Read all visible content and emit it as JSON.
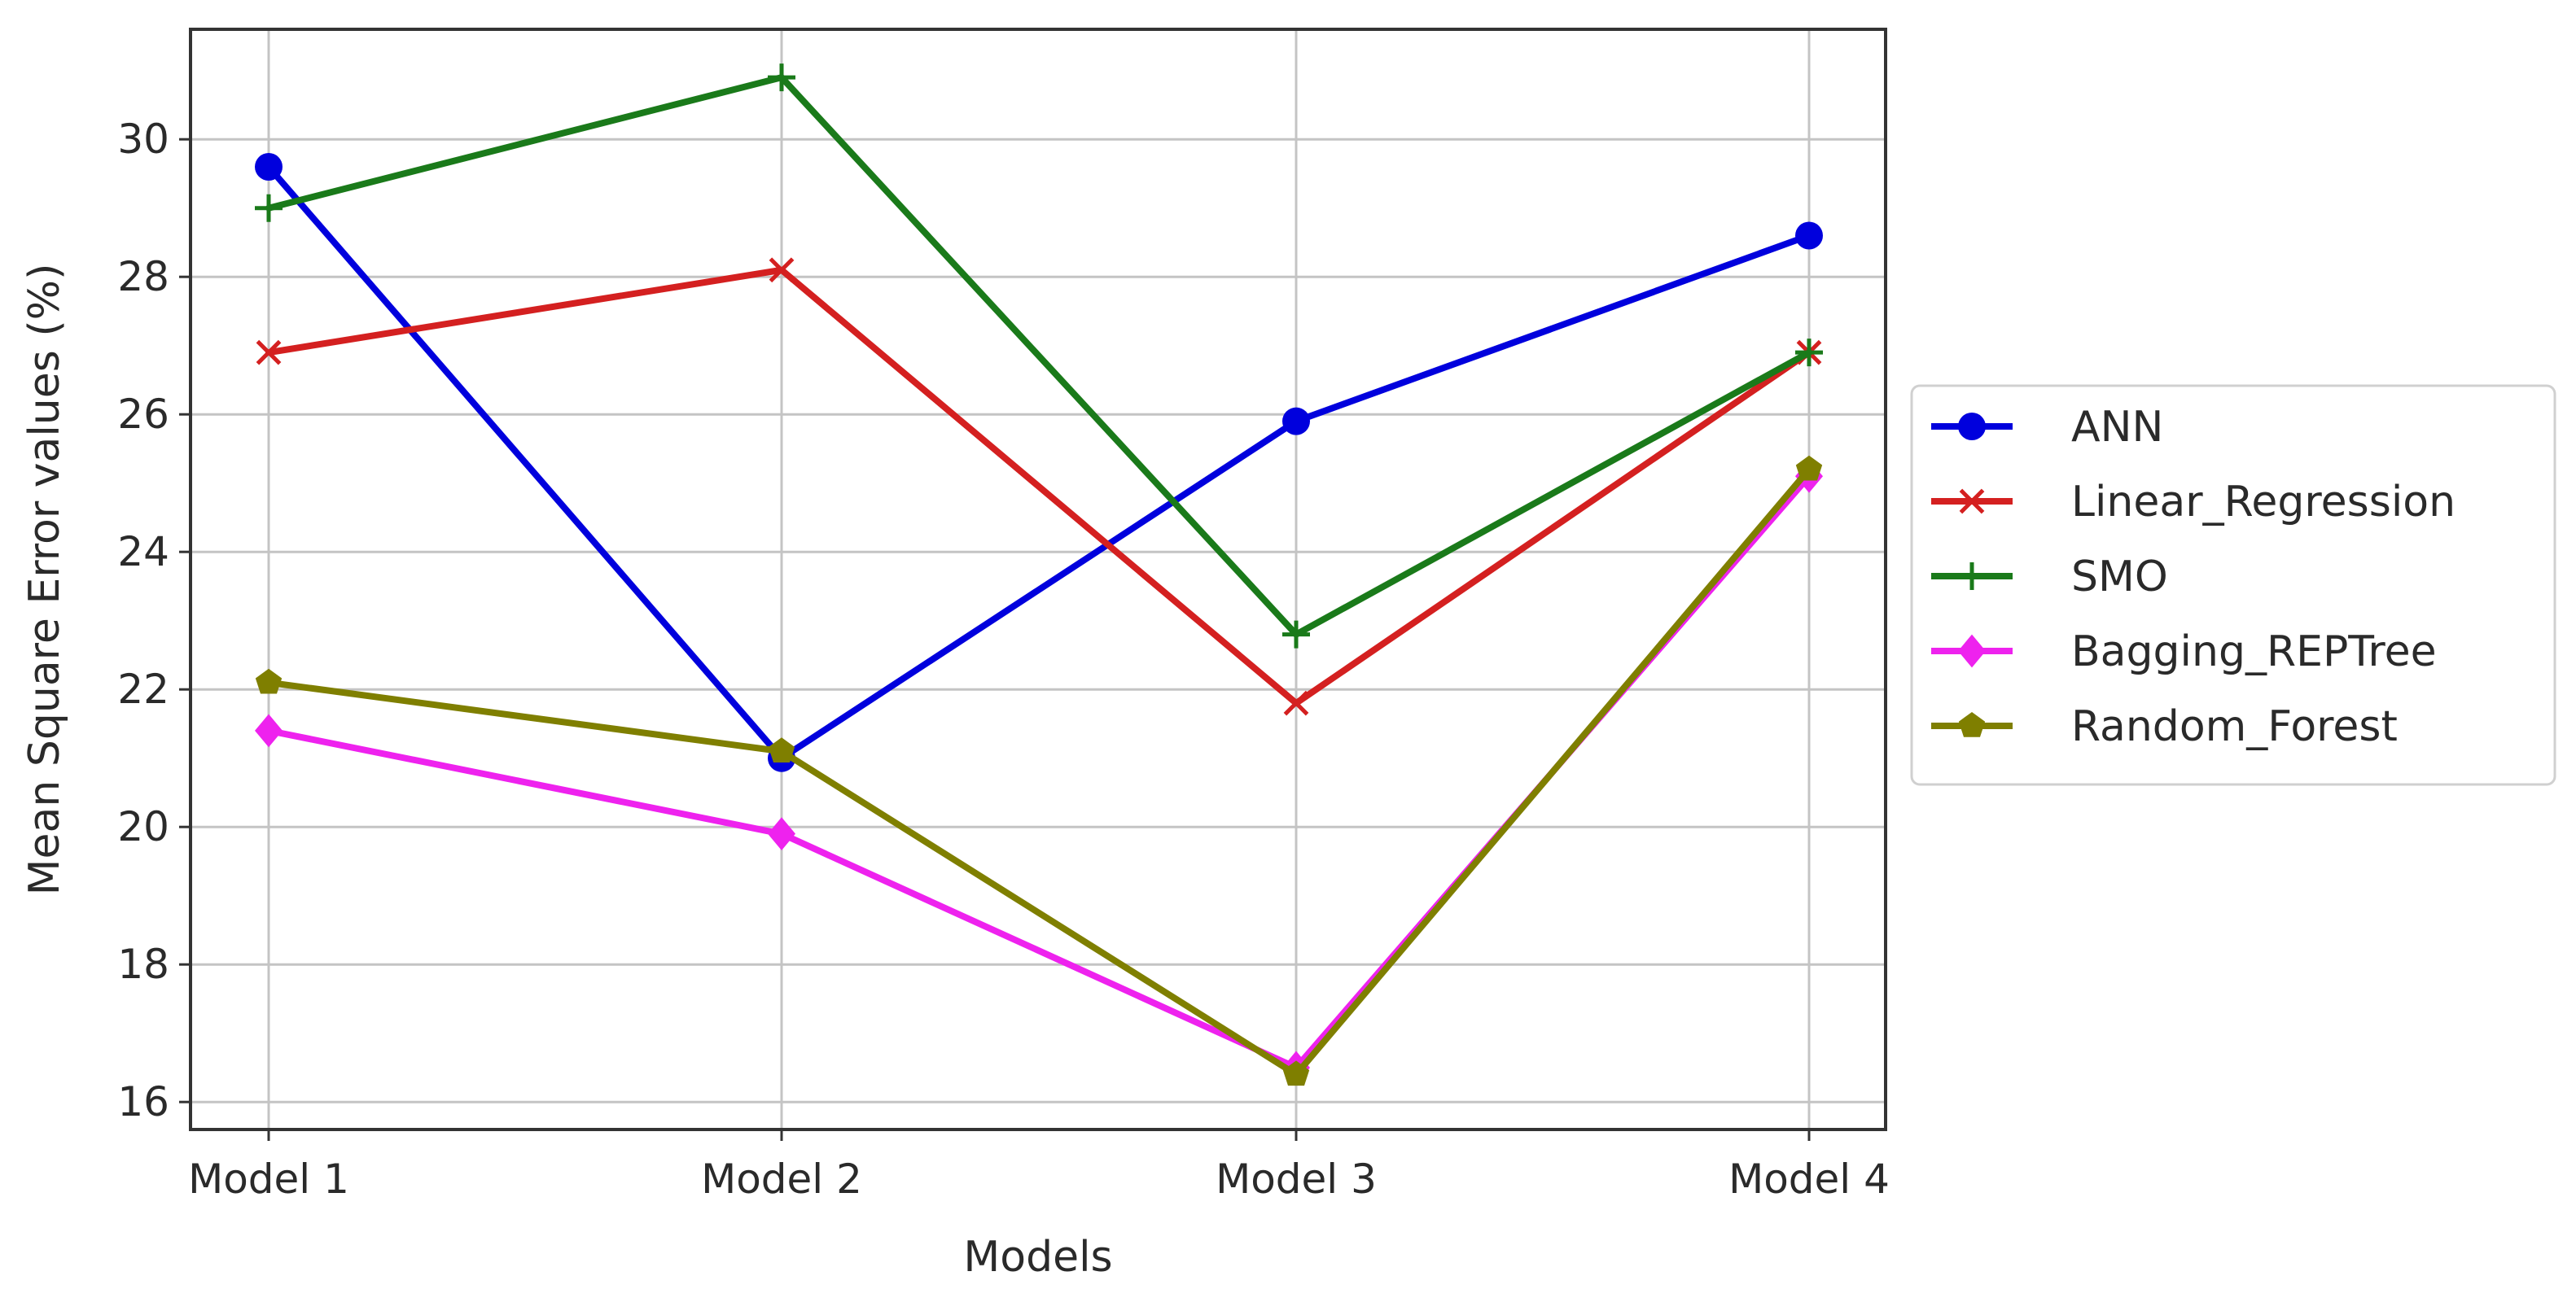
{
  "chart_data": {
    "type": "line",
    "title": "",
    "xlabel": "Models",
    "ylabel": "Mean Square Error values (%)",
    "categories": [
      "Model 1",
      "Model 2",
      "Model 3",
      "Model 4"
    ],
    "ylim": [
      15.6,
      31.6
    ],
    "yticks": [
      16,
      18,
      20,
      22,
      24,
      26,
      28,
      30
    ],
    "grid": true,
    "legend_position": "outside-right",
    "series": [
      {
        "name": "ANN",
        "color": "#0000dd",
        "marker": "circle",
        "values": [
          29.6,
          21.0,
          25.9,
          28.6
        ]
      },
      {
        "name": "Linear_Regression",
        "color": "#d42020",
        "marker": "x",
        "values": [
          26.9,
          28.1,
          21.8,
          26.9
        ]
      },
      {
        "name": "SMO",
        "color": "#1a7a1a",
        "marker": "plus",
        "values": [
          29.0,
          30.9,
          22.8,
          26.9
        ]
      },
      {
        "name": "Bagging_REPTree",
        "color": "#ee22ee",
        "marker": "diamond",
        "values": [
          21.4,
          19.9,
          16.5,
          25.1
        ]
      },
      {
        "name": "Random_Forest",
        "color": "#7f7f00",
        "marker": "pentagon",
        "values": [
          22.1,
          21.1,
          16.4,
          25.2
        ]
      }
    ]
  }
}
